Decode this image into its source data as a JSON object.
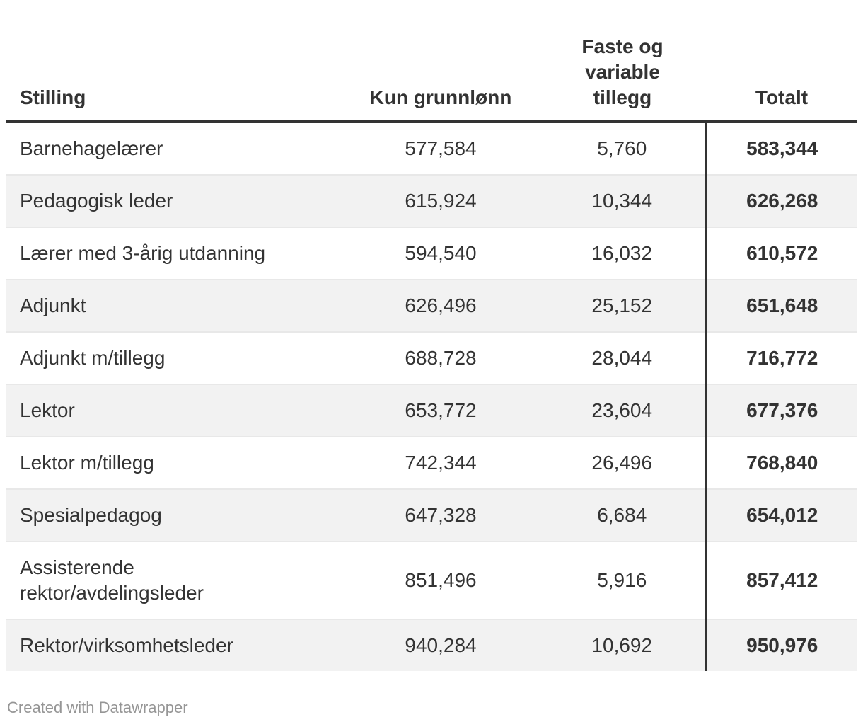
{
  "colors": {
    "text": "#333333",
    "header_border": "#333333",
    "divider": "#333333",
    "stripe": "#f2f2f2",
    "separator": "#e8e8e8",
    "footer_text": "#969696",
    "bg": "#ffffff"
  },
  "table": {
    "headers": [
      {
        "label": "Stilling"
      },
      {
        "label": "Kun grunnlønn"
      },
      {
        "label": "Faste og variable tillegg"
      },
      {
        "label": "Totalt"
      }
    ],
    "rows": [
      {
        "stilling": "Barnehagelærer",
        "grunnlonn": "577,584",
        "tillegg": "5,760",
        "totalt": "583,344"
      },
      {
        "stilling": "Pedagogisk leder",
        "grunnlonn": "615,924",
        "tillegg": "10,344",
        "totalt": "626,268"
      },
      {
        "stilling": "Lærer med 3-årig utdanning",
        "grunnlonn": "594,540",
        "tillegg": "16,032",
        "totalt": "610,572"
      },
      {
        "stilling": "Adjunkt",
        "grunnlonn": "626,496",
        "tillegg": "25,152",
        "totalt": "651,648"
      },
      {
        "stilling": "Adjunkt m/tillegg",
        "grunnlonn": "688,728",
        "tillegg": "28,044",
        "totalt": "716,772"
      },
      {
        "stilling": "Lektor",
        "grunnlonn": "653,772",
        "tillegg": "23,604",
        "totalt": "677,376"
      },
      {
        "stilling": "Lektor m/tillegg",
        "grunnlonn": "742,344",
        "tillegg": "26,496",
        "totalt": "768,840"
      },
      {
        "stilling": "Spesialpedagog",
        "grunnlonn": "647,328",
        "tillegg": "6,684",
        "totalt": "654,012"
      },
      {
        "stilling": "Assisterende rektor/avdelingsleder",
        "grunnlonn": "851,496",
        "tillegg": "5,916",
        "totalt": "857,412"
      },
      {
        "stilling": "Rektor/virksomhetsleder",
        "grunnlonn": "940,284",
        "tillegg": "10,692",
        "totalt": "950,976"
      }
    ]
  },
  "footer": {
    "credit": "Created with Datawrapper"
  },
  "chart_data": {
    "type": "table",
    "columns": [
      "Stilling",
      "Kun grunnlønn",
      "Faste og variable tillegg",
      "Totalt"
    ],
    "rows": [
      [
        "Barnehagelærer",
        577584,
        5760,
        583344
      ],
      [
        "Pedagogisk leder",
        615924,
        10344,
        626268
      ],
      [
        "Lærer med 3-årig utdanning",
        594540,
        16032,
        610572
      ],
      [
        "Adjunkt",
        626496,
        25152,
        651648
      ],
      [
        "Adjunkt m/tillegg",
        688728,
        28044,
        716772
      ],
      [
        "Lektor",
        653772,
        23604,
        677376
      ],
      [
        "Lektor m/tillegg",
        742344,
        26496,
        768840
      ],
      [
        "Spesialpedagog",
        647328,
        6684,
        654012
      ],
      [
        "Assisterende rektor/avdelingsleder",
        851496,
        5916,
        857412
      ],
      [
        "Rektor/virksomhetsleder",
        940284,
        10692,
        950976
      ]
    ],
    "layout_hints": {
      "zebra_striping": true,
      "bold_last_column": true,
      "vertical_divider_before_last_column": true,
      "numeric_alignment": "center"
    }
  }
}
